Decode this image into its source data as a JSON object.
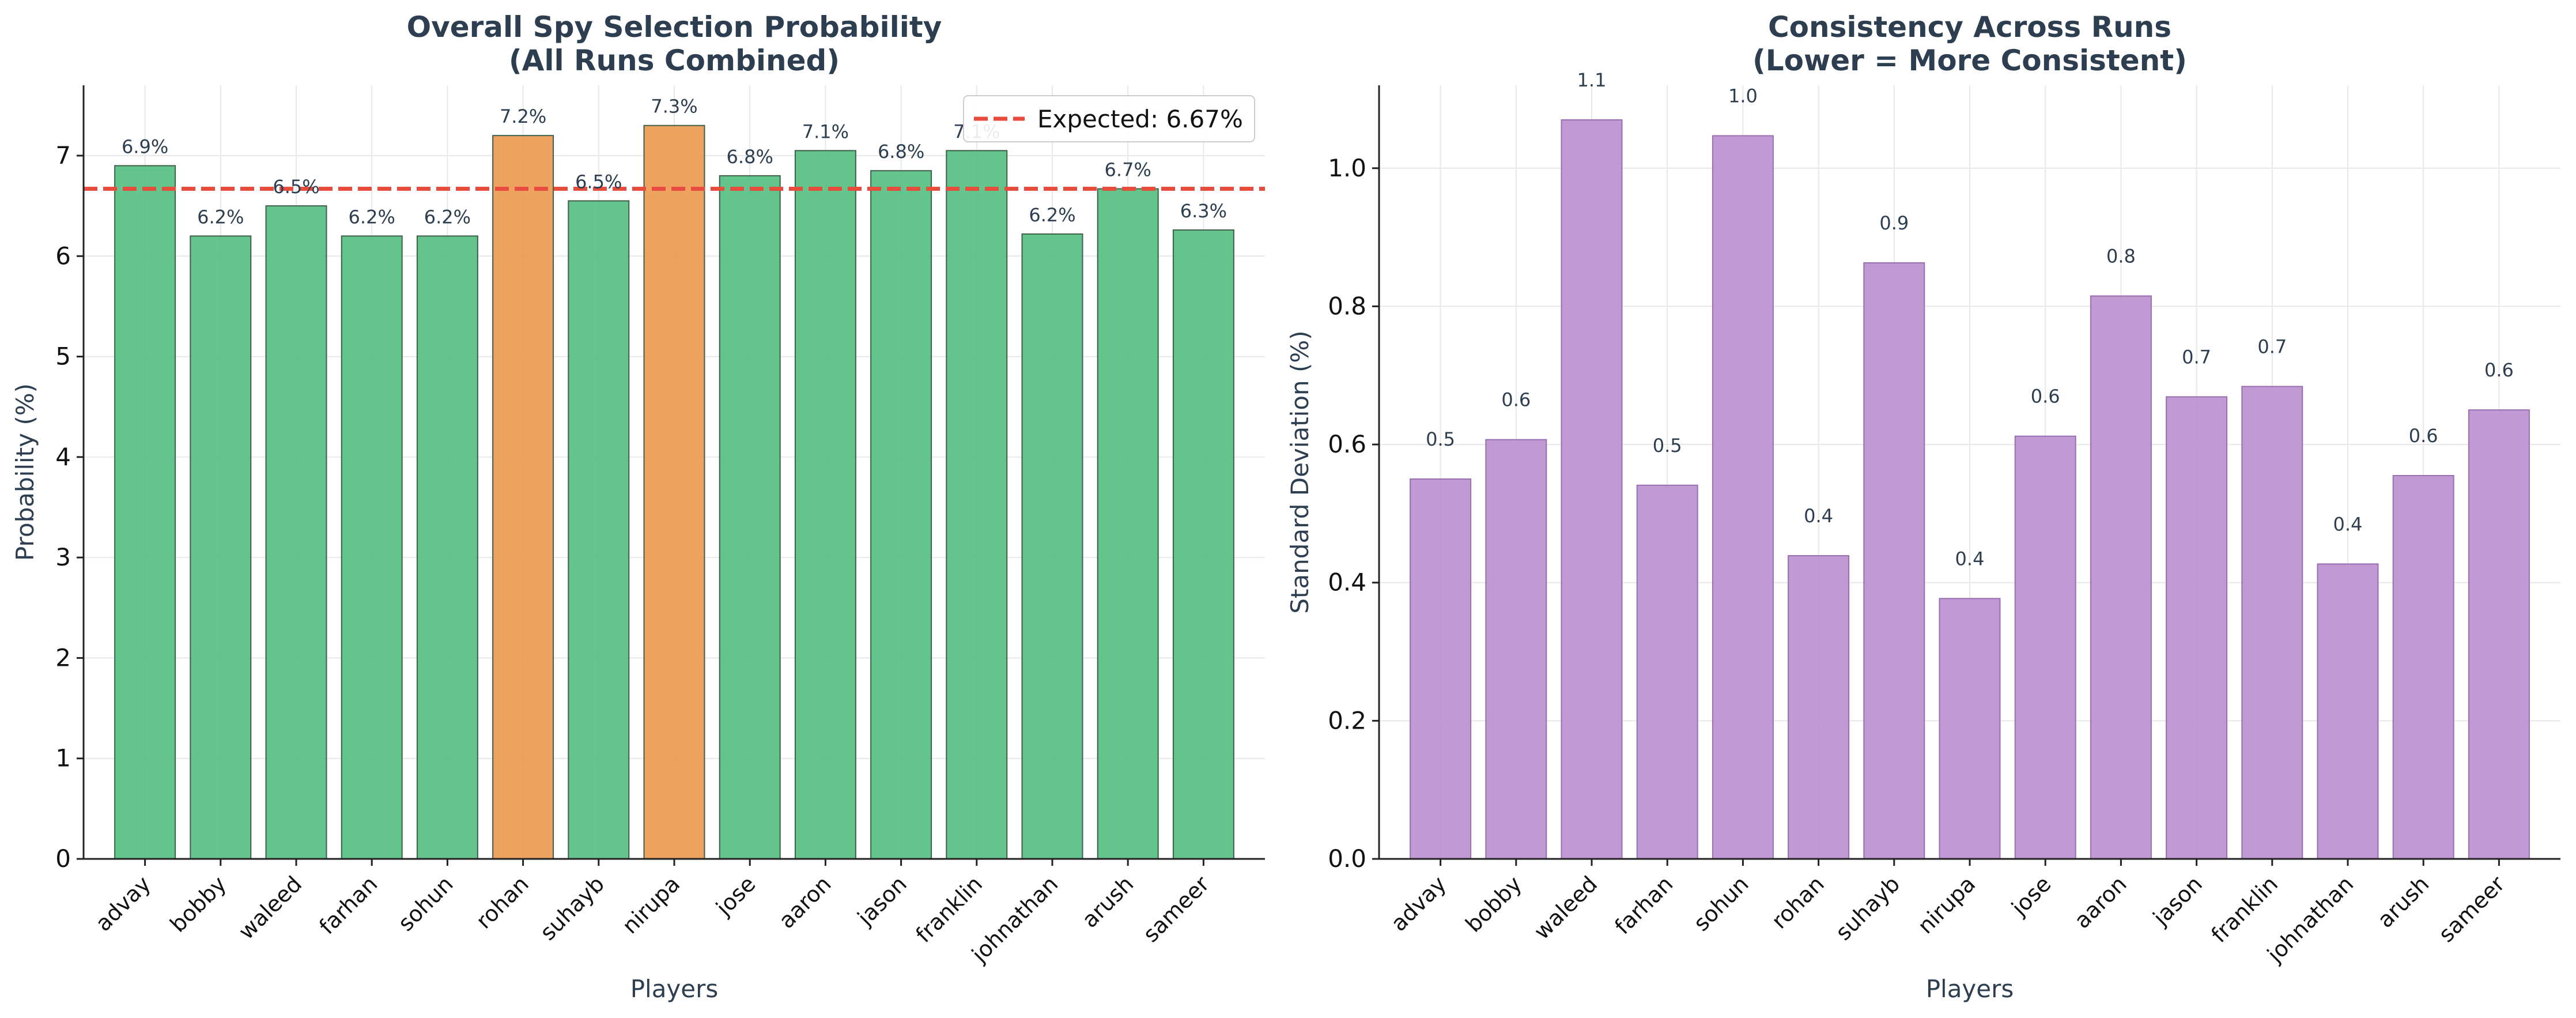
{
  "chart_data": [
    {
      "type": "bar",
      "title": "Overall Spy Selection Probability",
      "subtitle": "(All Runs Combined)",
      "xlabel": "Players",
      "ylabel": "Probability (%)",
      "ylim": [
        0,
        7.7
      ],
      "yticks": [
        0,
        1,
        2,
        3,
        4,
        5,
        6,
        7
      ],
      "grid": true,
      "categories": [
        "advay",
        "bobby",
        "waleed",
        "farhan",
        "sohun",
        "rohan",
        "suhayb",
        "nirupa",
        "jose",
        "aaron",
        "jason",
        "franklin",
        "johnathan",
        "arush",
        "sameer"
      ],
      "values": [
        6.9,
        6.2,
        6.5,
        6.2,
        6.2,
        7.2,
        6.55,
        7.3,
        6.8,
        7.05,
        6.85,
        7.05,
        6.22,
        6.67,
        6.26
      ],
      "value_labels": [
        "6.9%",
        "6.2%",
        "6.5%",
        "6.2%",
        "6.2%",
        "7.2%",
        "6.5%",
        "7.3%",
        "6.8%",
        "7.1%",
        "6.8%",
        "7.1%",
        "6.2%",
        "6.7%",
        "6.3%"
      ],
      "bar_colors": [
        "#52be80",
        "#52be80",
        "#52be80",
        "#52be80",
        "#52be80",
        "#eb984e",
        "#52be80",
        "#eb984e",
        "#52be80",
        "#52be80",
        "#52be80",
        "#52be80",
        "#52be80",
        "#52be80",
        "#52be80"
      ],
      "reference_line": {
        "value": 6.67,
        "label": "Expected: 6.67%",
        "color": "#e74c3c"
      },
      "legend_position": "top-right"
    },
    {
      "type": "bar",
      "title": "Consistency Across Runs",
      "subtitle": "(Lower = More Consistent)",
      "xlabel": "Players",
      "ylabel": "Standard Deviation (%)",
      "ylim": [
        0,
        1.12
      ],
      "yticks": [
        0.0,
        0.2,
        0.4,
        0.6,
        0.8,
        1.0
      ],
      "ytick_labels": [
        "0.0",
        "0.2",
        "0.4",
        "0.6",
        "0.8",
        "1.0"
      ],
      "grid": true,
      "categories": [
        "advay",
        "bobby",
        "waleed",
        "farhan",
        "sohun",
        "rohan",
        "suhayb",
        "nirupa",
        "jose",
        "aaron",
        "jason",
        "franklin",
        "johnathan",
        "arush",
        "sameer"
      ],
      "values": [
        0.55,
        0.607,
        1.07,
        0.541,
        1.047,
        0.439,
        0.863,
        0.377,
        0.612,
        0.815,
        0.669,
        0.684,
        0.427,
        0.555,
        0.65
      ],
      "value_labels": [
        "0.5",
        "0.6",
        "1.1",
        "0.5",
        "1.0",
        "0.4",
        "0.9",
        "0.4",
        "0.6",
        "0.8",
        "0.7",
        "0.7",
        "0.4",
        "0.6",
        "0.6"
      ],
      "bar_colors": [
        "#bb8fce"
      ],
      "legend_position": "none"
    }
  ]
}
